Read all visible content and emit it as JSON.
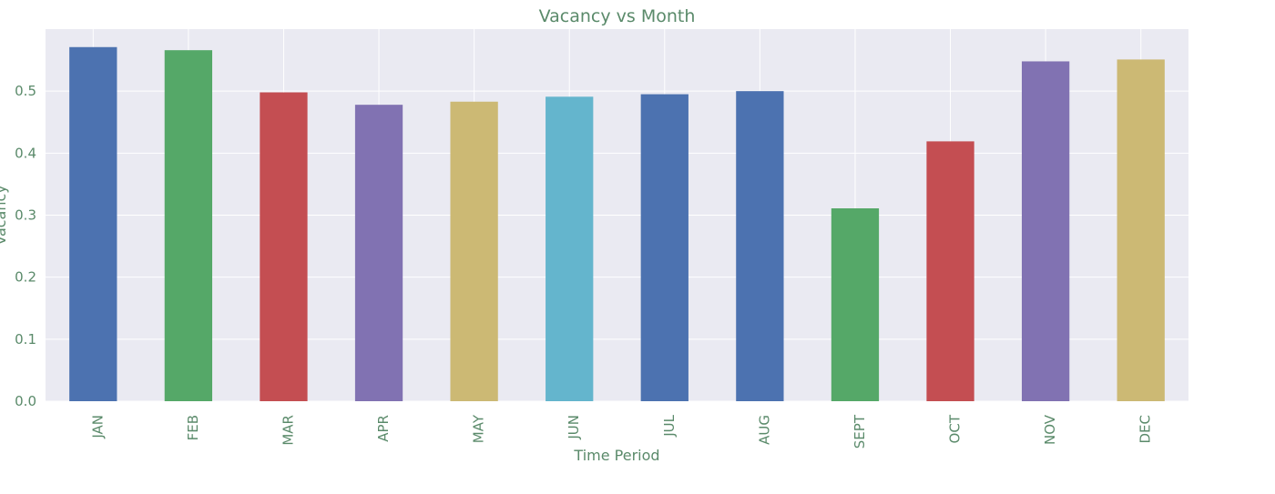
{
  "chart_data": {
    "type": "bar",
    "title": "Vacancy vs Month",
    "xlabel": "Time Period",
    "ylabel": "Vacancy",
    "categories": [
      "JAN",
      "FEB",
      "MAR",
      "APR",
      "MAY",
      "JUN",
      "JUL",
      "AUG",
      "SEPT",
      "OCT",
      "NOV",
      "DEC"
    ],
    "values": [
      0.571,
      0.566,
      0.498,
      0.478,
      0.483,
      0.491,
      0.495,
      0.5,
      0.311,
      0.419,
      0.548,
      0.551
    ],
    "colors": [
      "#4c72b0",
      "#55a868",
      "#c44e52",
      "#8172b2",
      "#ccb974",
      "#64b5cd",
      "#4c72b0",
      "#4c72b0",
      "#55a868",
      "#c44e52",
      "#8172b2",
      "#ccb974"
    ],
    "yticks": [
      0.0,
      0.1,
      0.2,
      0.3,
      0.4,
      0.5
    ],
    "ylim": [
      0,
      0.6
    ],
    "grid": true,
    "legend": false,
    "background": "#eaeaf2",
    "text_color": "#5a8a6a"
  }
}
